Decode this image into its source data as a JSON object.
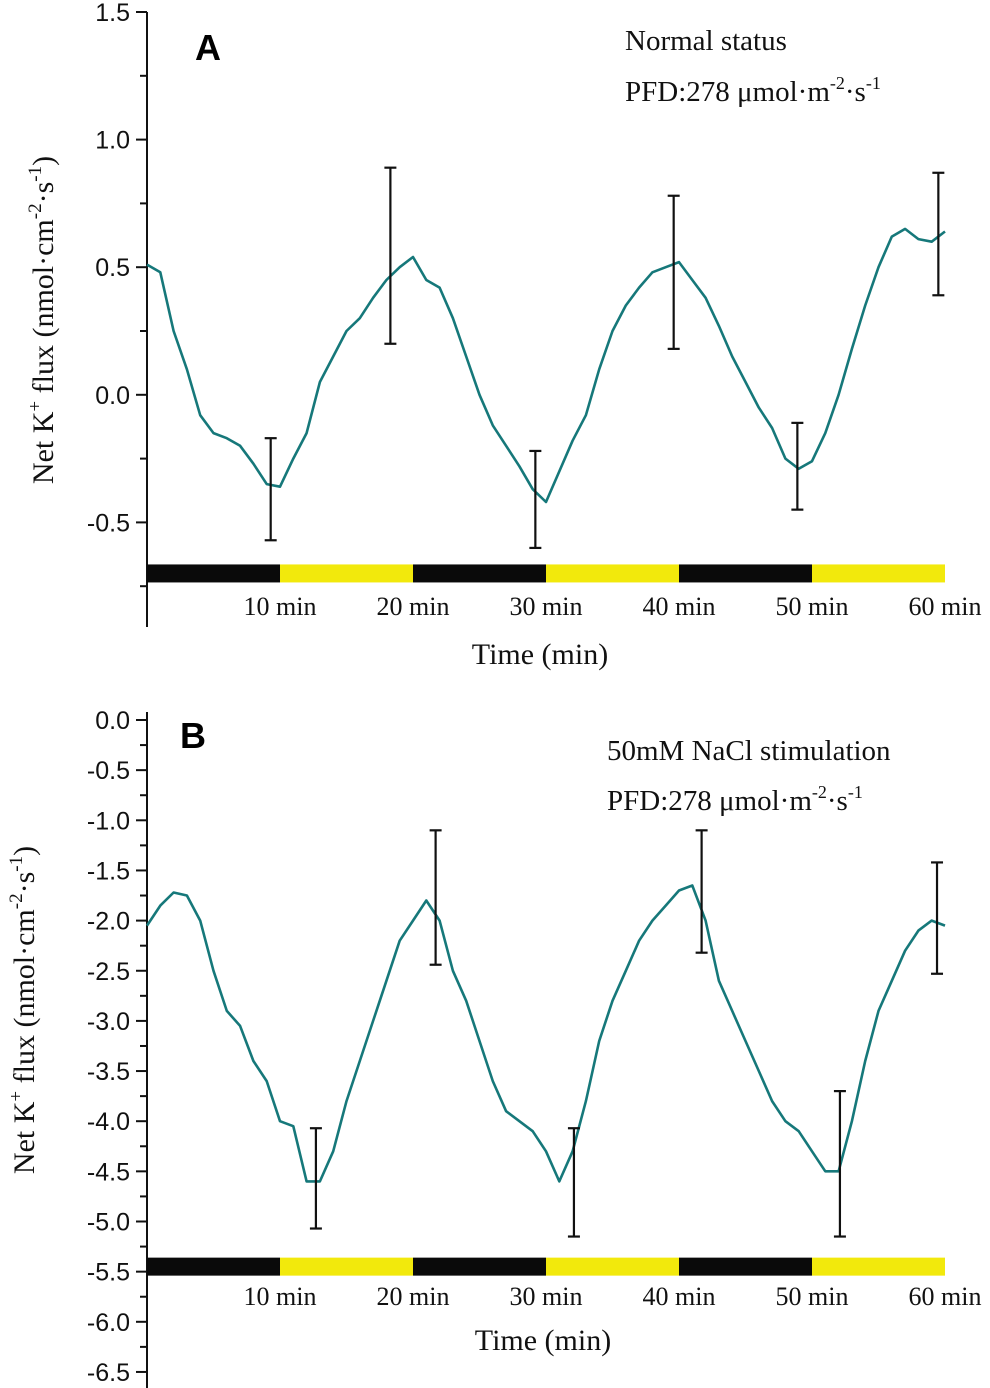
{
  "colors": {
    "line": "#16787a",
    "dark": "#0a0a0a",
    "light": "#f2e90c",
    "err": "#111111"
  },
  "chart_data": [
    {
      "type": "line",
      "panel_label": "A",
      "annotation": {
        "line1": "Normal status",
        "pfd_prefix": "PFD:278 μmol·m",
        "pfd_exp1": "-2",
        "pfd_mid": "·s",
        "pfd_exp2": "-1"
      },
      "ylabel": {
        "pre": "Net K",
        "sup1": "+",
        "mid": " flux (nmol·cm",
        "sup2": "-2",
        "mid2": "·s",
        "sup3": "-1",
        "post": ")"
      },
      "xlabel": "Time  (min)",
      "ylim": [
        -0.9,
        1.5
      ],
      "yticks": [
        "1.5",
        "1.0",
        "0.5",
        "0.0",
        "-0.5"
      ],
      "ytick_values": [
        1.5,
        1.0,
        0.5,
        0.0,
        -0.5
      ],
      "minor_step": 0.25,
      "xlim": [
        0,
        60
      ],
      "xtick_labels": [
        "10 min",
        "20 min",
        "30 min",
        "40 min",
        "50 min",
        "60 min"
      ],
      "xtick_values": [
        10,
        20,
        30,
        40,
        50,
        60
      ],
      "light_periods": [
        {
          "start": 0,
          "end": 10,
          "phase": "dark"
        },
        {
          "start": 10,
          "end": 20,
          "phase": "light"
        },
        {
          "start": 20,
          "end": 30,
          "phase": "dark"
        },
        {
          "start": 30,
          "end": 40,
          "phase": "light"
        },
        {
          "start": 40,
          "end": 50,
          "phase": "dark"
        },
        {
          "start": 50,
          "end": 60,
          "phase": "light"
        }
      ],
      "bar_level": -0.7,
      "x": [
        0,
        1,
        2,
        3,
        4,
        5,
        6,
        7,
        8,
        9,
        10,
        11,
        12,
        13,
        14,
        15,
        16,
        17,
        18,
        19,
        20,
        21,
        22,
        23,
        24,
        25,
        26,
        27,
        28,
        29,
        30,
        31,
        32,
        33,
        34,
        35,
        36,
        37,
        38,
        39,
        40,
        41,
        42,
        43,
        44,
        45,
        46,
        47,
        48,
        49,
        50,
        51,
        52,
        53,
        54,
        55,
        56,
        57,
        58,
        59,
        60
      ],
      "values": [
        0.51,
        0.48,
        0.25,
        0.1,
        -0.08,
        -0.15,
        -0.17,
        -0.2,
        -0.27,
        -0.35,
        -0.36,
        -0.25,
        -0.15,
        0.05,
        0.15,
        0.25,
        0.3,
        0.38,
        0.45,
        0.5,
        0.54,
        0.45,
        0.42,
        0.3,
        0.15,
        0.0,
        -0.12,
        -0.2,
        -0.28,
        -0.37,
        -0.42,
        -0.3,
        -0.18,
        -0.08,
        0.1,
        0.25,
        0.35,
        0.42,
        0.48,
        0.5,
        0.52,
        0.45,
        0.38,
        0.27,
        0.15,
        0.05,
        -0.05,
        -0.13,
        -0.25,
        -0.29,
        -0.26,
        -0.15,
        0.0,
        0.18,
        0.35,
        0.5,
        0.62,
        0.65,
        0.61,
        0.6,
        0.64
      ],
      "error_bars": [
        {
          "x": 9.3,
          "low": -0.57,
          "high": -0.17
        },
        {
          "x": 18.3,
          "low": 0.2,
          "high": 0.89
        },
        {
          "x": 29.2,
          "low": -0.6,
          "high": -0.22
        },
        {
          "x": 39.6,
          "low": 0.18,
          "high": 0.78
        },
        {
          "x": 48.9,
          "low": -0.45,
          "high": -0.11
        },
        {
          "x": 59.5,
          "low": 0.39,
          "high": 0.87
        }
      ]
    },
    {
      "type": "line",
      "panel_label": "B",
      "annotation": {
        "line1": "50mM NaCl stimulation",
        "pfd_prefix": "PFD:278 μmol·m",
        "pfd_exp1": "-2",
        "pfd_mid": "·s",
        "pfd_exp2": "-1"
      },
      "ylabel": {
        "pre": "Net K",
        "sup1": "+",
        "mid": " flux (nmol·cm",
        "sup2": "-2",
        "mid2": "·s",
        "sup3": "-1",
        "post": ")"
      },
      "xlabel": "Time (min)",
      "ylim": [
        -6.68,
        0.0
      ],
      "yticks": [
        "0.0",
        "-0.5",
        "-1.0",
        "-1.5",
        "-2.0",
        "-2.5",
        "-3.0",
        "-3.5",
        "-4.0",
        "-4.5",
        "-5.0",
        "-5.5",
        "-6.0",
        "-6.5"
      ],
      "ytick_values": [
        0,
        -0.5,
        -1,
        -1.5,
        -2,
        -2.5,
        -3,
        -3.5,
        -4,
        -4.5,
        -5,
        -5.5,
        -6,
        -6.5
      ],
      "minor_step": 0.25,
      "xlim": [
        0,
        60
      ],
      "xtick_labels": [
        "10 min",
        "20 min",
        "30 min",
        "40 min",
        "50 min",
        "60 min"
      ],
      "xtick_values": [
        10,
        20,
        30,
        40,
        50,
        60
      ],
      "light_periods": [
        {
          "start": 0,
          "end": 10,
          "phase": "dark"
        },
        {
          "start": 10,
          "end": 20,
          "phase": "light"
        },
        {
          "start": 20,
          "end": 30,
          "phase": "dark"
        },
        {
          "start": 30,
          "end": 40,
          "phase": "light"
        },
        {
          "start": 40,
          "end": 50,
          "phase": "dark"
        },
        {
          "start": 50,
          "end": 60,
          "phase": "light"
        }
      ],
      "bar_level": -5.45,
      "x": [
        0,
        1,
        2,
        3,
        4,
        5,
        6,
        7,
        8,
        9,
        10,
        11,
        12,
        13,
        14,
        15,
        16,
        17,
        18,
        19,
        20,
        21,
        22,
        23,
        24,
        25,
        26,
        27,
        28,
        29,
        30,
        31,
        32,
        33,
        34,
        35,
        36,
        37,
        38,
        39,
        40,
        41,
        42,
        43,
        44,
        45,
        46,
        47,
        48,
        49,
        50,
        51,
        52,
        53,
        54,
        55,
        56,
        57,
        58,
        59,
        60
      ],
      "values": [
        -2.05,
        -1.85,
        -1.72,
        -1.75,
        -2.0,
        -2.5,
        -2.9,
        -3.05,
        -3.4,
        -3.6,
        -4.0,
        -4.05,
        -4.6,
        -4.6,
        -4.3,
        -3.8,
        -3.4,
        -3.0,
        -2.6,
        -2.2,
        -2.0,
        -1.8,
        -2.0,
        -2.5,
        -2.8,
        -3.2,
        -3.6,
        -3.9,
        -4.0,
        -4.1,
        -4.3,
        -4.6,
        -4.3,
        -3.8,
        -3.2,
        -2.8,
        -2.5,
        -2.2,
        -2.0,
        -1.85,
        -1.7,
        -1.65,
        -2.0,
        -2.6,
        -2.9,
        -3.2,
        -3.5,
        -3.8,
        -4.0,
        -4.1,
        -4.3,
        -4.5,
        -4.5,
        -4.0,
        -3.4,
        -2.9,
        -2.6,
        -2.3,
        -2.1,
        -2.0,
        -2.05
      ],
      "error_bars": [
        {
          "x": 12.7,
          "low": -5.07,
          "high": -4.07
        },
        {
          "x": 21.7,
          "low": -2.44,
          "high": -1.1
        },
        {
          "x": 32.1,
          "low": -5.15,
          "high": -4.07
        },
        {
          "x": 41.7,
          "low": -2.32,
          "high": -1.1
        },
        {
          "x": 52.1,
          "low": -5.15,
          "high": -3.7
        },
        {
          "x": 59.4,
          "low": -2.53,
          "high": -1.42
        }
      ]
    }
  ]
}
